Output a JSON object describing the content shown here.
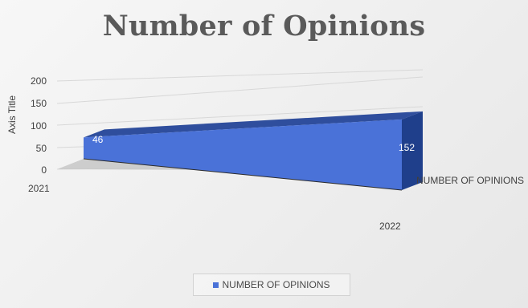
{
  "chart_data": {
    "type": "area",
    "title": "Number of Opinions",
    "xlabel": "",
    "ylabel": "Axis Title",
    "categories": [
      "2021",
      "2022"
    ],
    "y_ticks": [
      "0",
      "50",
      "100",
      "150",
      "200"
    ],
    "ylim": [
      0,
      200
    ],
    "depth_axis_label": "NUMBER OF OPINIONS",
    "series": [
      {
        "name": "NUMBER OF OPINIONS",
        "values": [
          46,
          152
        ],
        "data_labels": [
          "46",
          "152"
        ]
      }
    ],
    "legend": "bottom",
    "grid": true,
    "colors": {
      "front_face": "#4a72d8",
      "top_face": "#2f4e9d",
      "side_face": "#1f3f8b",
      "floor": "#c7c7c7"
    }
  }
}
